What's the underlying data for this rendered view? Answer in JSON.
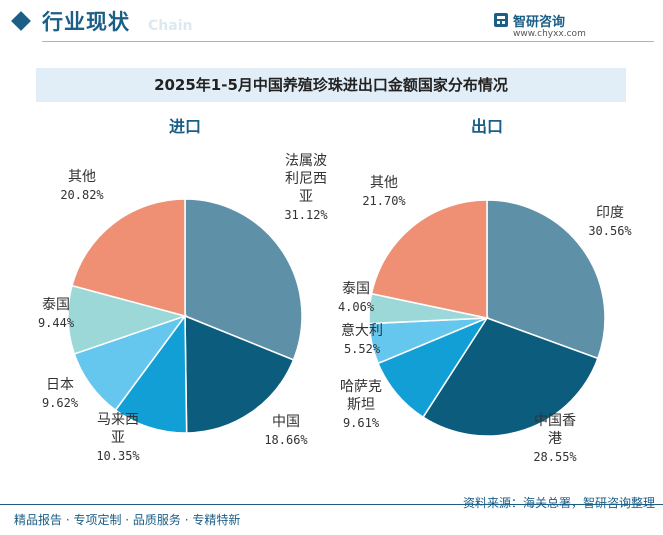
{
  "header": {
    "section_title": "行业现状",
    "ghost_text": "Chain",
    "logo_name": "智研咨询",
    "logo_url": "www.chyxx.com"
  },
  "chart_title": "2025年1-5月中国养殖珍珠进出口金额国家分布情况",
  "chart_data": [
    {
      "type": "pie",
      "title": "进口",
      "unit": "%",
      "slices": [
        {
          "label": "法属波利尼西亚",
          "value": 31.12,
          "value_text": "31.12%",
          "label_lines": [
            "法属波",
            "利尼西",
            "亚"
          ],
          "color": "#5e91a8"
        },
        {
          "label": "中国",
          "value": 18.66,
          "value_text": "18.66%",
          "label_lines": [
            "中国"
          ],
          "color": "#0c5c7e"
        },
        {
          "label": "马来西亚",
          "value": 10.35,
          "value_text": "10.35%",
          "label_lines": [
            "马来西",
            "亚"
          ],
          "color": "#129fd6"
        },
        {
          "label": "日本",
          "value": 9.62,
          "value_text": "9.62%",
          "label_lines": [
            "日本"
          ],
          "color": "#66c7ee"
        },
        {
          "label": "泰国",
          "value": 9.44,
          "value_text": "9.44%",
          "label_lines": [
            "泰国"
          ],
          "color": "#9dd8d8"
        },
        {
          "label": "其他",
          "value": 20.82,
          "value_text": "20.82%",
          "label_lines": [
            "其他"
          ],
          "color": "#ef9075"
        }
      ]
    },
    {
      "type": "pie",
      "title": "出口",
      "unit": "%",
      "slices": [
        {
          "label": "印度",
          "value": 30.56,
          "value_text": "30.56%",
          "label_lines": [
            "印度"
          ],
          "color": "#5e91a8"
        },
        {
          "label": "中国香港",
          "value": 28.55,
          "value_text": "28.55%",
          "label_lines": [
            "中国香",
            "港"
          ],
          "color": "#0c5c7e"
        },
        {
          "label": "哈萨克斯坦",
          "value": 9.61,
          "value_text": "9.61%",
          "label_lines": [
            "哈萨克",
            "斯坦"
          ],
          "color": "#129fd6"
        },
        {
          "label": "意大利",
          "value": 5.52,
          "value_text": "5.52%",
          "label_lines": [
            "意大利"
          ],
          "color": "#66c7ee"
        },
        {
          "label": "泰国",
          "value": 4.06,
          "value_text": "4.06%",
          "label_lines": [
            "泰国"
          ],
          "color": "#9dd8d8"
        },
        {
          "label": "其他",
          "value": 21.7,
          "value_text": "21.70%",
          "label_lines": [
            "其他"
          ],
          "color": "#ef9075"
        }
      ]
    }
  ],
  "footer": {
    "tagline": "精品报告 · 专项定制 · 品质服务 · 专精特新",
    "source": "资料来源：海关总署，智研咨询整理"
  }
}
